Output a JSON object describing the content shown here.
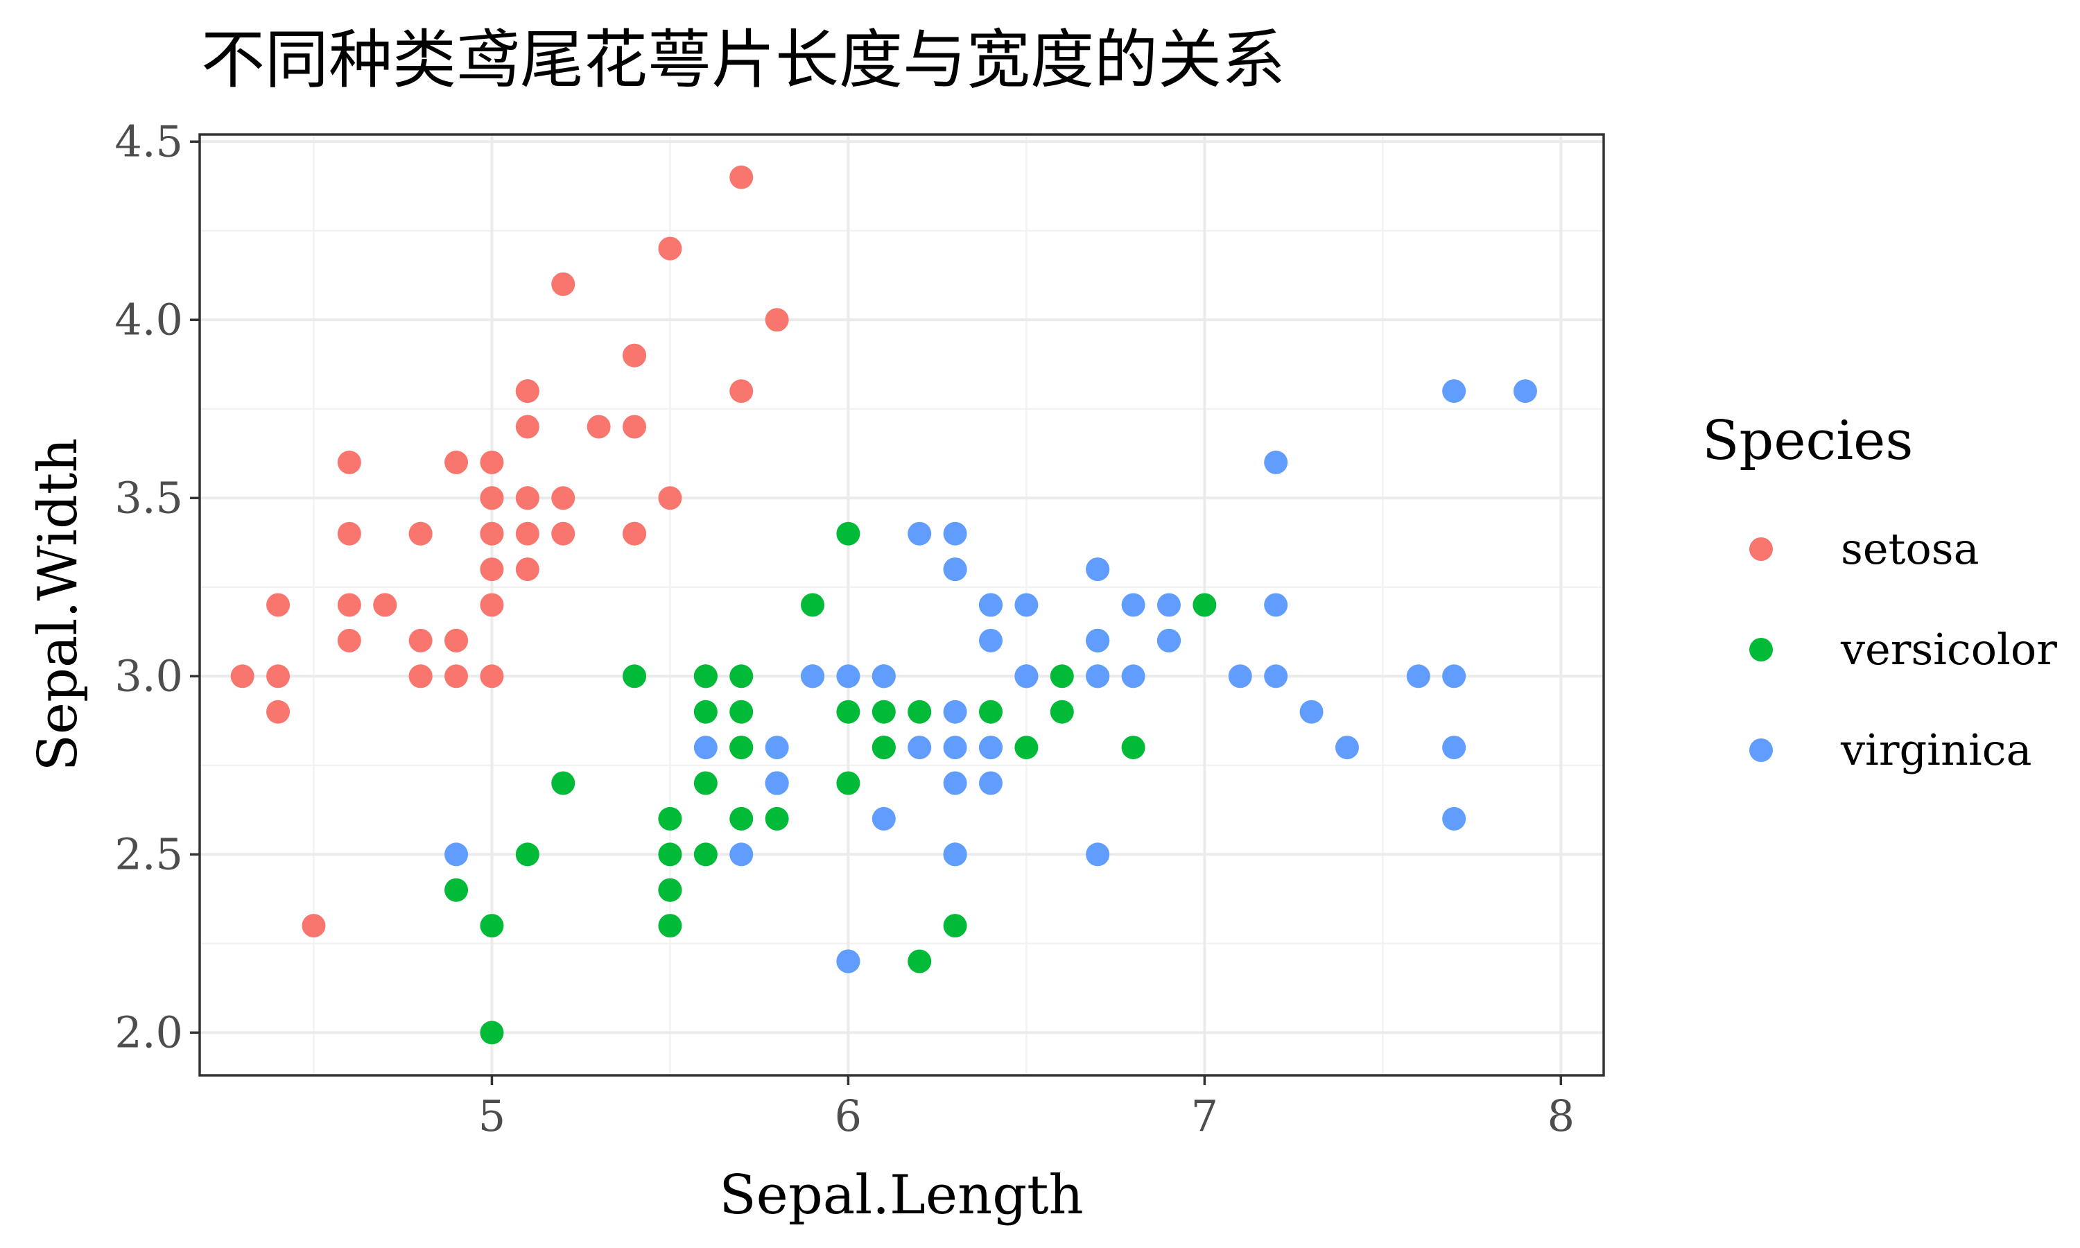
{
  "chart_data": {
    "type": "scatter",
    "title": "不同种类鸢尾花萼片长度与宽度的关系",
    "xlabel": "Sepal.Length",
    "ylabel": "Sepal.Width",
    "xlim": [
      4.18,
      8.12
    ],
    "ylim": [
      1.88,
      4.52
    ],
    "x_ticks": [
      "5",
      "6",
      "7",
      "8"
    ],
    "x_tick_values": [
      5,
      6,
      7,
      8
    ],
    "y_ticks": [
      "2.0",
      "2.5",
      "3.0",
      "3.5",
      "4.0",
      "4.5"
    ],
    "y_tick_values": [
      2.0,
      2.5,
      3.0,
      3.5,
      4.0,
      4.5
    ],
    "grid": true,
    "legend": {
      "title": "Species",
      "position": "right"
    },
    "series": [
      {
        "name": "setosa",
        "color": "#F8766D",
        "x": [
          5.1,
          4.9,
          4.7,
          4.6,
          5.0,
          5.4,
          4.6,
          5.0,
          4.4,
          4.9,
          5.4,
          4.8,
          4.8,
          4.3,
          5.8,
          5.7,
          5.4,
          5.1,
          5.7,
          5.1,
          5.4,
          5.1,
          4.6,
          5.1,
          4.8,
          5.0,
          5.0,
          5.2,
          5.2,
          4.7,
          4.8,
          5.4,
          5.2,
          5.5,
          4.9,
          5.0,
          5.5,
          4.9,
          4.4,
          5.1,
          5.0,
          4.5,
          4.4,
          5.0,
          5.1,
          4.8,
          5.1,
          4.6,
          5.3,
          5.0
        ],
        "y": [
          3.5,
          3.0,
          3.2,
          3.1,
          3.6,
          3.9,
          3.4,
          3.4,
          2.9,
          3.1,
          3.7,
          3.4,
          3.0,
          3.0,
          4.0,
          4.4,
          3.9,
          3.5,
          3.8,
          3.8,
          3.4,
          3.7,
          3.6,
          3.3,
          3.4,
          3.0,
          3.4,
          3.5,
          3.4,
          3.2,
          3.1,
          3.4,
          4.1,
          4.2,
          3.1,
          3.2,
          3.5,
          3.6,
          3.0,
          3.4,
          3.5,
          2.3,
          3.2,
          3.5,
          3.8,
          3.0,
          3.8,
          3.2,
          3.7,
          3.3
        ]
      },
      {
        "name": "versicolor",
        "color": "#00BA38",
        "x": [
          7.0,
          6.4,
          6.9,
          5.5,
          6.5,
          5.7,
          6.3,
          4.9,
          6.6,
          5.2,
          5.0,
          5.9,
          6.0,
          6.1,
          5.6,
          6.7,
          5.6,
          5.8,
          6.2,
          5.6,
          5.9,
          6.1,
          6.3,
          6.1,
          6.4,
          6.6,
          6.8,
          6.7,
          6.0,
          5.7,
          5.5,
          5.5,
          5.8,
          6.0,
          5.4,
          6.0,
          6.7,
          6.3,
          5.6,
          5.5,
          5.5,
          6.1,
          5.8,
          5.0,
          5.6,
          5.7,
          5.7,
          6.2,
          5.1,
          5.7
        ],
        "y": [
          3.2,
          3.2,
          3.1,
          2.3,
          2.8,
          2.8,
          3.3,
          2.4,
          2.9,
          2.7,
          2.0,
          3.0,
          2.2,
          2.9,
          2.9,
          3.1,
          3.0,
          2.7,
          2.2,
          2.5,
          3.2,
          2.8,
          2.5,
          2.8,
          2.9,
          3.0,
          2.8,
          3.0,
          2.9,
          2.6,
          2.4,
          2.4,
          2.7,
          2.7,
          3.0,
          3.4,
          3.1,
          2.3,
          3.0,
          2.5,
          2.6,
          3.0,
          2.6,
          2.3,
          2.7,
          3.0,
          2.9,
          2.9,
          2.5,
          2.8
        ]
      },
      {
        "name": "virginica",
        "color": "#619CFF",
        "x": [
          6.3,
          5.8,
          7.1,
          6.3,
          6.5,
          7.6,
          4.9,
          7.3,
          6.7,
          7.2,
          6.5,
          6.4,
          6.8,
          5.7,
          5.8,
          6.4,
          6.5,
          7.7,
          7.7,
          6.0,
          6.9,
          5.6,
          7.7,
          6.3,
          6.7,
          7.2,
          6.2,
          6.1,
          6.4,
          7.2,
          7.4,
          7.9,
          6.4,
          6.3,
          6.1,
          7.7,
          6.3,
          6.4,
          6.0,
          6.9,
          6.7,
          6.9,
          5.8,
          6.8,
          6.7,
          6.7,
          6.3,
          6.5,
          6.2,
          5.9
        ],
        "y": [
          3.3,
          2.7,
          3.0,
          2.9,
          3.0,
          3.0,
          2.5,
          2.9,
          2.5,
          3.6,
          3.2,
          2.7,
          3.0,
          2.5,
          2.8,
          3.2,
          3.0,
          3.8,
          2.6,
          2.2,
          3.2,
          2.8,
          2.8,
          2.7,
          3.3,
          3.2,
          2.8,
          3.0,
          2.8,
          3.0,
          2.8,
          3.8,
          2.8,
          2.8,
          2.6,
          3.0,
          3.4,
          3.1,
          3.0,
          3.1,
          3.1,
          3.1,
          2.7,
          3.2,
          3.3,
          3.0,
          2.5,
          3.0,
          3.4,
          3.0
        ]
      }
    ]
  }
}
